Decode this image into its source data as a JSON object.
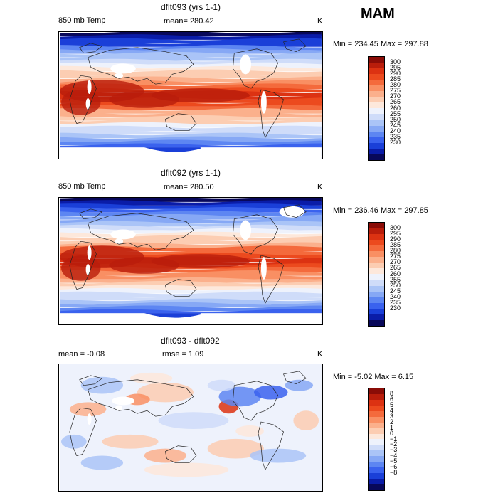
{
  "season": "MAM",
  "colors": {
    "temp_scale": [
      "#08085a",
      "#0a1ca8",
      "#1a3fd8",
      "#3a62ee",
      "#5d86f2",
      "#86a8f5",
      "#aac4f7",
      "#cfdcf9",
      "#eef2fc",
      "#fde8db",
      "#fccdb2",
      "#fbb08c",
      "#f98f63",
      "#f46a3c",
      "#ec4a1e",
      "#dc3212",
      "#b91d0b",
      "#8a0c07"
    ],
    "diff_scale": [
      "#08085a",
      "#0a1ca8",
      "#1a3fd8",
      "#3a62ee",
      "#5d86f2",
      "#86a8f5",
      "#aac4f7",
      "#cfdcf9",
      "#eef2fc",
      "#fde8db",
      "#fccdb2",
      "#fbb08c",
      "#f98f63",
      "#f46a3c",
      "#ec4a1e",
      "#dc3212",
      "#b91d0b",
      "#8a0c07"
    ]
  },
  "panels": [
    {
      "title": "dflt093 (yrs 1-1)",
      "variable": "850 mb Temp",
      "stat_text": "mean=  280.42",
      "units": "K",
      "minmax": "Min = 234.45 Max = 297.88",
      "ticks": [
        "300",
        "295",
        "290",
        "285",
        "280",
        "275",
        "270",
        "265",
        "260",
        "255",
        "250",
        "245",
        "240",
        "235",
        "230"
      ],
      "mean_value": 280.42
    },
    {
      "title": "dflt092 (yrs 1-1)",
      "variable": "850 mb Temp",
      "stat_text": "mean=  280.50",
      "units": "K",
      "minmax": "Min = 236.46 Max = 297.85",
      "ticks": [
        "300",
        "295",
        "290",
        "285",
        "280",
        "275",
        "270",
        "265",
        "260",
        "255",
        "250",
        "245",
        "240",
        "235",
        "230"
      ],
      "mean_value": 280.5
    },
    {
      "title": "dflt093 - dflt092",
      "variable": "mean =   -0.08",
      "stat_text": "rmse =    1.09",
      "units": "K",
      "minmax": "Min =  -5.02 Max =   6.15",
      "ticks": [
        "8",
        "6",
        "5",
        "4",
        "3",
        "2",
        "1",
        "0",
        "−1",
        "−2",
        "−3",
        "−4",
        "−5",
        "−6",
        "−8"
      ],
      "mean_value": -0.08,
      "rmse_value": 1.09
    }
  ]
}
